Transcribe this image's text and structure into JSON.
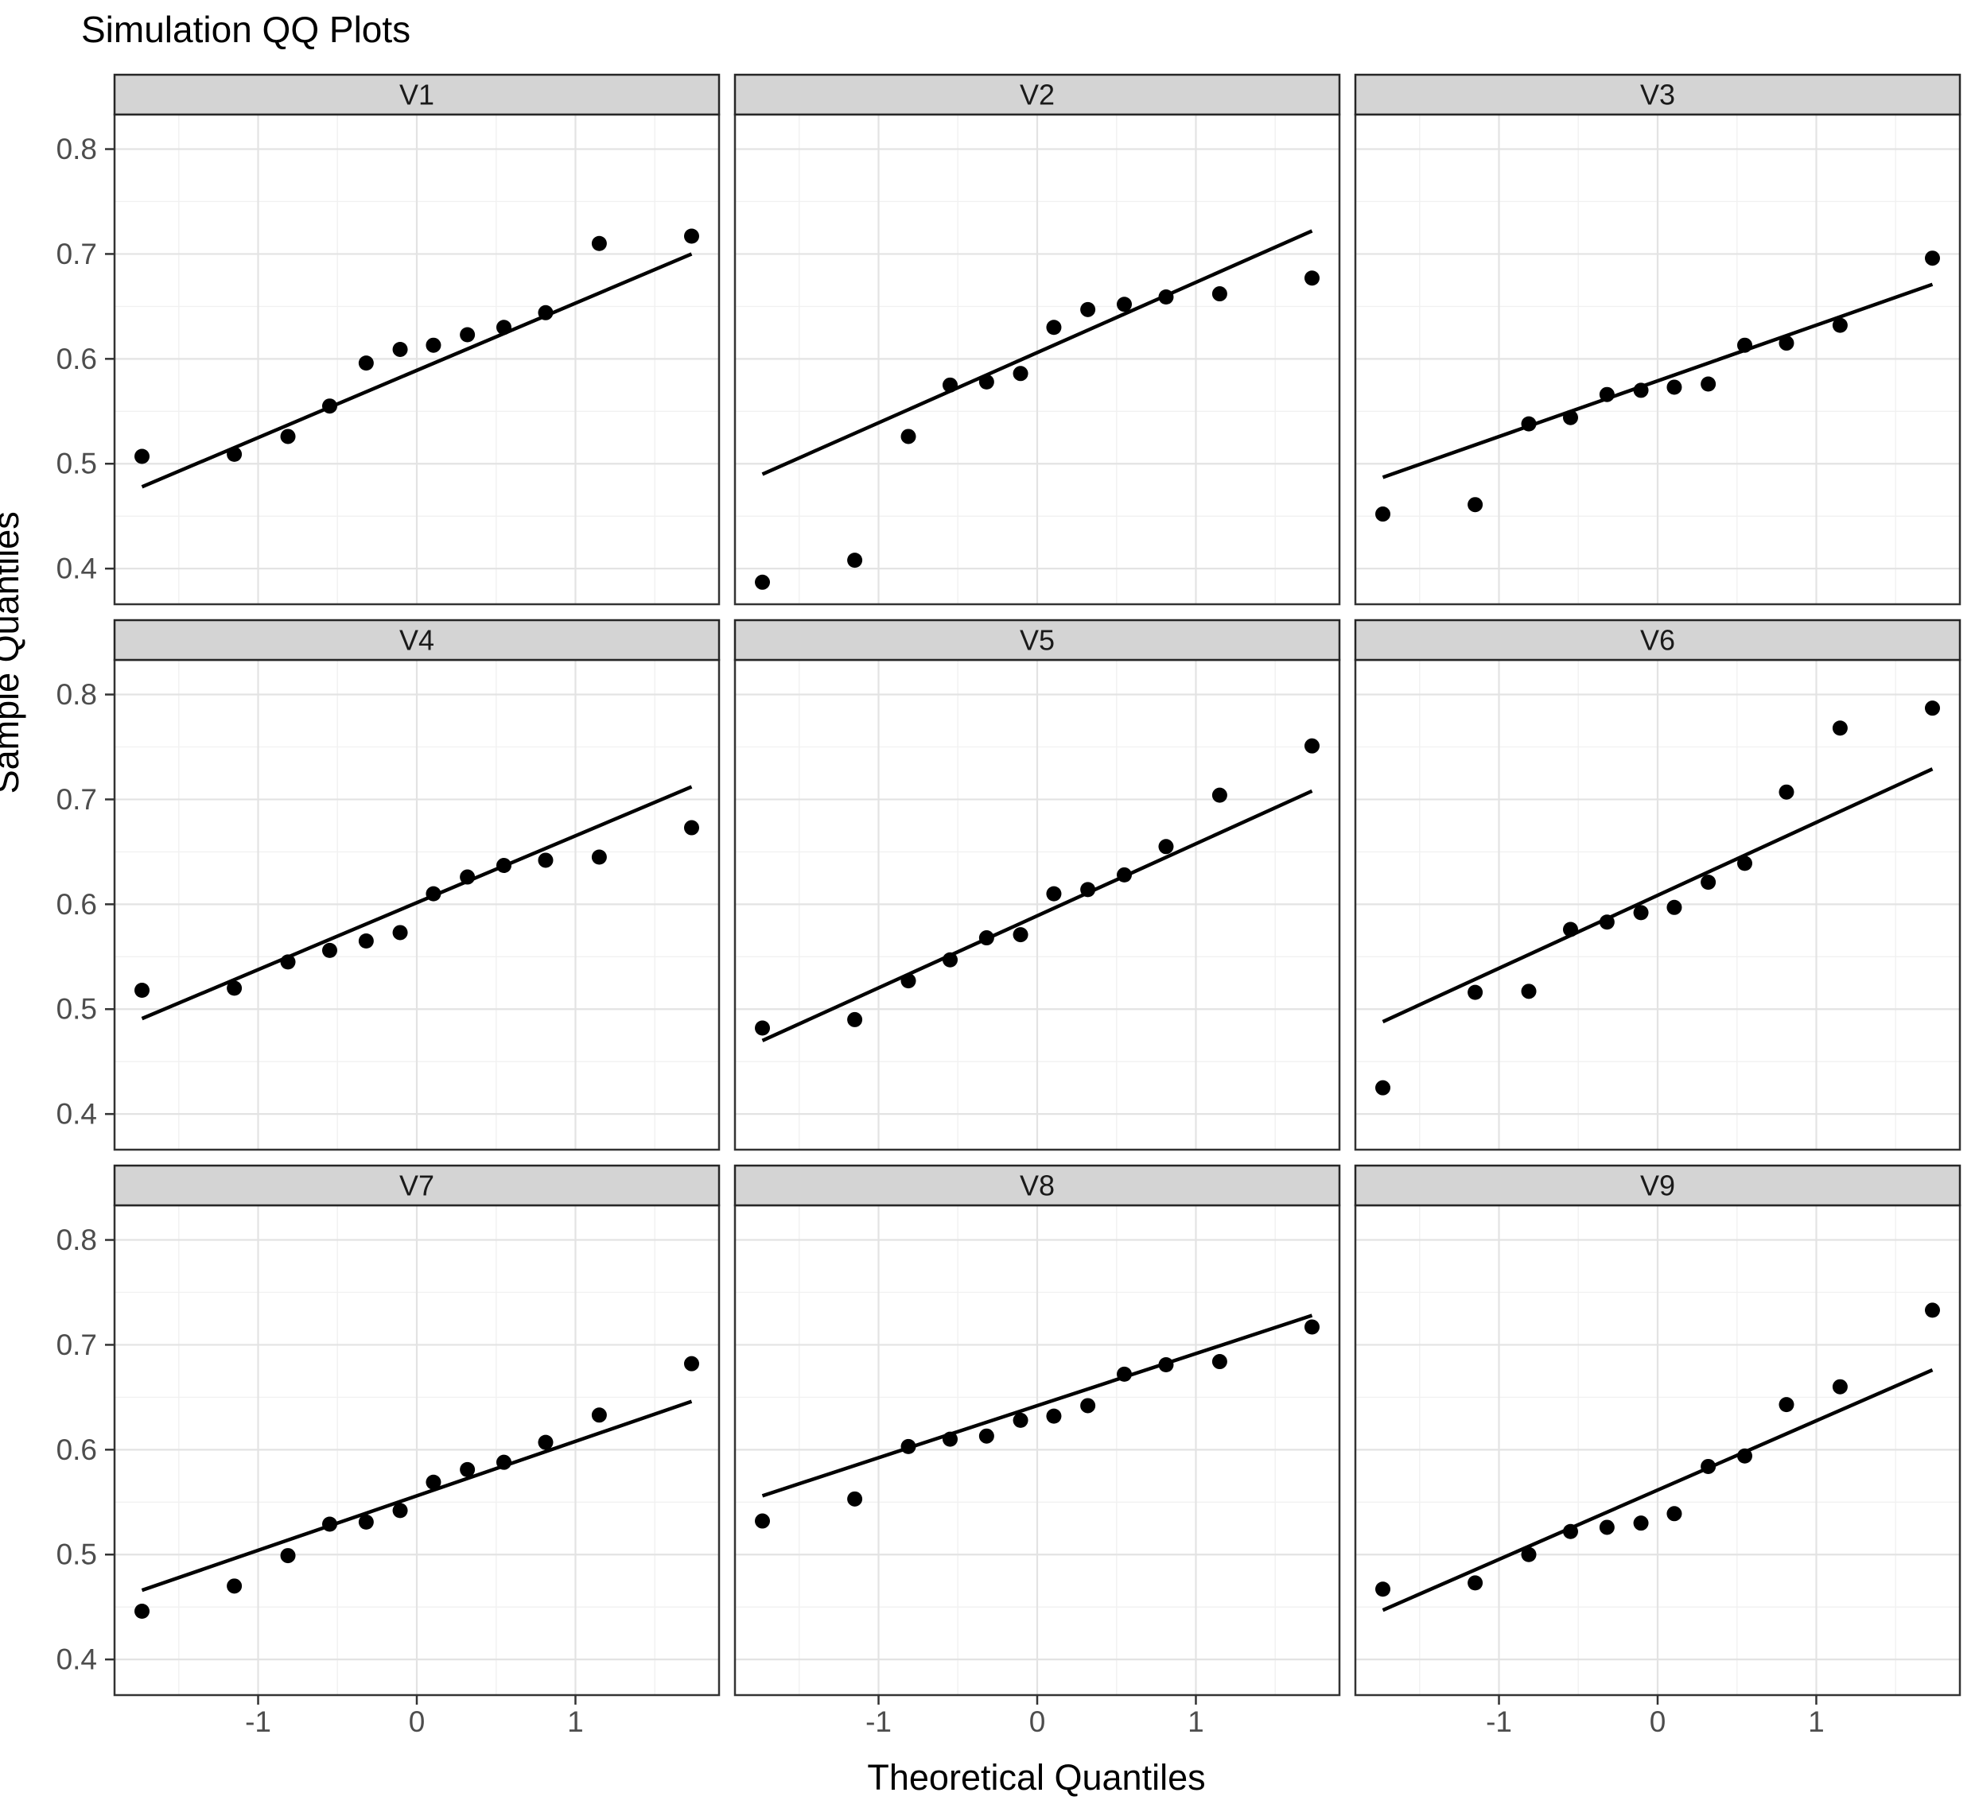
{
  "figure": {
    "title": "Simulation QQ Plots",
    "x_axis_title": "Theoretical Quantiles",
    "y_axis_title": "Sample Quantiles"
  },
  "chart_data": {
    "type": "scatter",
    "title": "Simulation QQ Plots",
    "xlabel": "Theoretical Quantiles",
    "ylabel": "Sample Quantiles",
    "facets": [
      "V1",
      "V2",
      "V3",
      "V4",
      "V5",
      "V6",
      "V7",
      "V8",
      "V9"
    ],
    "grid": true,
    "xlim": [
      -1.905,
      1.905
    ],
    "ylim": [
      0.366,
      0.833
    ],
    "x_major_ticks": [
      -1,
      0,
      1
    ],
    "x_tick_labels": [
      "-1",
      "0",
      "1"
    ],
    "x_minor_ticks": [
      -1.5,
      -0.5,
      0.5,
      1.5
    ],
    "y_major_ticks": [
      0.8,
      0.7,
      0.6,
      0.5,
      0.4
    ],
    "y_tick_labels": [
      "0.8",
      "0.7",
      "0.6",
      "0.5",
      "0.4"
    ],
    "y_minor_ticks": [
      0.35,
      0.45,
      0.55,
      0.65,
      0.75
    ],
    "theoretical_quantiles": [
      -1.732,
      -1.15,
      -0.812,
      -0.549,
      -0.319,
      -0.105,
      0.105,
      0.319,
      0.549,
      0.812,
      1.15,
      1.732
    ],
    "panels": [
      {
        "facet": "V1",
        "sample_quantiles": [
          0.507,
          0.509,
          0.526,
          0.555,
          0.596,
          0.609,
          0.613,
          0.623,
          0.63,
          0.644,
          0.71,
          0.717
        ],
        "qq_line": {
          "x1": -1.732,
          "y1": 0.478,
          "x2": 1.732,
          "y2": 0.7
        }
      },
      {
        "facet": "V2",
        "sample_quantiles": [
          0.387,
          0.408,
          0.526,
          0.575,
          0.578,
          0.586,
          0.63,
          0.647,
          0.652,
          0.659,
          0.662,
          0.677
        ],
        "qq_line": {
          "x1": -1.732,
          "y1": 0.49,
          "x2": 1.732,
          "y2": 0.722
        }
      },
      {
        "facet": "V3",
        "sample_quantiles": [
          0.452,
          0.461,
          0.538,
          0.544,
          0.566,
          0.57,
          0.573,
          0.576,
          0.613,
          0.615,
          0.632,
          0.696
        ],
        "qq_line": {
          "x1": -1.732,
          "y1": 0.487,
          "x2": 1.732,
          "y2": 0.671
        }
      },
      {
        "facet": "V4",
        "sample_quantiles": [
          0.518,
          0.52,
          0.545,
          0.556,
          0.565,
          0.573,
          0.61,
          0.626,
          0.637,
          0.642,
          0.645,
          0.673
        ],
        "qq_line": {
          "x1": -1.732,
          "y1": 0.491,
          "x2": 1.732,
          "y2": 0.712
        }
      },
      {
        "facet": "V5",
        "sample_quantiles": [
          0.482,
          0.49,
          0.527,
          0.547,
          0.568,
          0.571,
          0.61,
          0.614,
          0.628,
          0.655,
          0.704,
          0.751
        ],
        "qq_line": {
          "x1": -1.732,
          "y1": 0.47,
          "x2": 1.732,
          "y2": 0.708
        }
      },
      {
        "facet": "V6",
        "sample_quantiles": [
          0.425,
          0.516,
          0.517,
          0.576,
          0.583,
          0.592,
          0.597,
          0.621,
          0.639,
          0.707,
          0.768,
          0.787
        ],
        "qq_line": {
          "x1": -1.732,
          "y1": 0.488,
          "x2": 1.732,
          "y2": 0.729
        }
      },
      {
        "facet": "V7",
        "sample_quantiles": [
          0.446,
          0.47,
          0.499,
          0.529,
          0.531,
          0.542,
          0.569,
          0.581,
          0.588,
          0.607,
          0.633,
          0.682
        ],
        "qq_line": {
          "x1": -1.732,
          "y1": 0.466,
          "x2": 1.732,
          "y2": 0.646
        }
      },
      {
        "facet": "V8",
        "sample_quantiles": [
          0.532,
          0.553,
          0.603,
          0.61,
          0.613,
          0.628,
          0.632,
          0.642,
          0.672,
          0.681,
          0.684,
          0.717
        ],
        "qq_line": {
          "x1": -1.732,
          "y1": 0.556,
          "x2": 1.732,
          "y2": 0.728
        }
      },
      {
        "facet": "V9",
        "sample_quantiles": [
          0.467,
          0.473,
          0.5,
          0.522,
          0.526,
          0.53,
          0.539,
          0.584,
          0.594,
          0.643,
          0.66,
          0.733
        ],
        "qq_line": {
          "x1": -1.732,
          "y1": 0.447,
          "x2": 1.732,
          "y2": 0.676
        }
      }
    ],
    "style": {
      "point_color": "#000000",
      "qq_line_color": "#000000",
      "strip_fill": "#d4d4d4",
      "strip_border": "#262626",
      "strip_text_color": "#1a1a1a",
      "panel_background": "#ffffff",
      "panel_border": "#333333",
      "grid_major_color": "#e3e3e3",
      "grid_minor_color": "#f1f1f1",
      "tick_mark_color": "#333333",
      "tick_label_color": "#4d4d4d"
    }
  }
}
